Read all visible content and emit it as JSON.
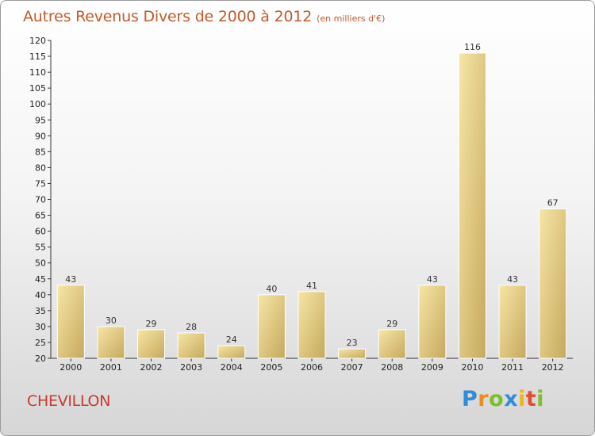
{
  "title": {
    "main": "Autres Revenus Divers de 2000 à 2012",
    "sub": "(en milliers d'€)"
  },
  "footer": {
    "town": "CHEVILLON",
    "logo": "Proxiti"
  },
  "colors": {
    "bar_light": "#f5df9a",
    "bar_dark": "#c8ad62",
    "title": "#c25a2a",
    "town": "#c63a2e"
  },
  "chart_data": {
    "type": "bar",
    "title": "Autres Revenus Divers de 2000 à 2012",
    "unit": "(en milliers d'€)",
    "categories": [
      "2000",
      "2001",
      "2002",
      "2003",
      "2004",
      "2005",
      "2006",
      "2007",
      "2008",
      "2009",
      "2010",
      "2011",
      "2012"
    ],
    "values": [
      43,
      30,
      29,
      28,
      24,
      40,
      41,
      23,
      29,
      43,
      116,
      43,
      67
    ],
    "ylim": [
      20,
      120
    ],
    "yticks": [
      20,
      25,
      30,
      35,
      40,
      45,
      50,
      55,
      60,
      65,
      70,
      75,
      80,
      85,
      90,
      95,
      100,
      105,
      110,
      115,
      120
    ],
    "grid": false,
    "legend": "none"
  }
}
